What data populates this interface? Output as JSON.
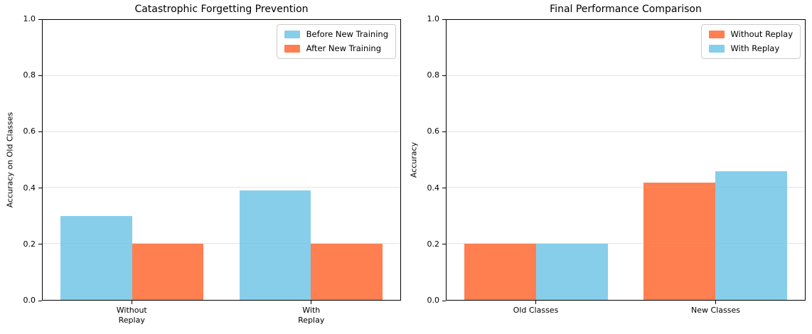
{
  "figure": {
    "background": "#ffffff"
  },
  "palette": {
    "skyblue": "#87CEEB",
    "coral": "#FF7F50",
    "grid_color": "#b0b0b0",
    "spine_color": "#000000",
    "legend_border": "#cccccc"
  },
  "chart_data": [
    {
      "type": "bar",
      "title": "Catastrophic Forgetting Prevention",
      "ylabel": "Accuracy on Old Classes",
      "xlabel": "",
      "categories": [
        "Without\nReplay",
        "With\nReplay"
      ],
      "series": [
        {
          "name": "Before New Training",
          "color": "#87CEEB",
          "values": [
            0.3,
            0.39
          ]
        },
        {
          "name": "After New Training",
          "color": "#FF7F50",
          "values": [
            0.2,
            0.2
          ]
        }
      ],
      "ylim": [
        0,
        1
      ],
      "yticks": [
        0.0,
        0.2,
        0.4,
        0.6,
        0.8,
        1.0
      ],
      "grid": true,
      "legend_location": "upper right"
    },
    {
      "type": "bar",
      "title": "Final Performance Comparison",
      "ylabel": "Accuracy",
      "xlabel": "",
      "categories": [
        "Old Classes",
        "New Classes"
      ],
      "series": [
        {
          "name": "Without Replay",
          "color": "#FF7F50",
          "values": [
            0.2,
            0.42
          ]
        },
        {
          "name": "With Replay",
          "color": "#87CEEB",
          "values": [
            0.2,
            0.46
          ]
        }
      ],
      "ylim": [
        0,
        1
      ],
      "yticks": [
        0.0,
        0.2,
        0.4,
        0.6,
        0.8,
        1.0
      ],
      "grid": true,
      "legend_location": "upper right"
    }
  ]
}
